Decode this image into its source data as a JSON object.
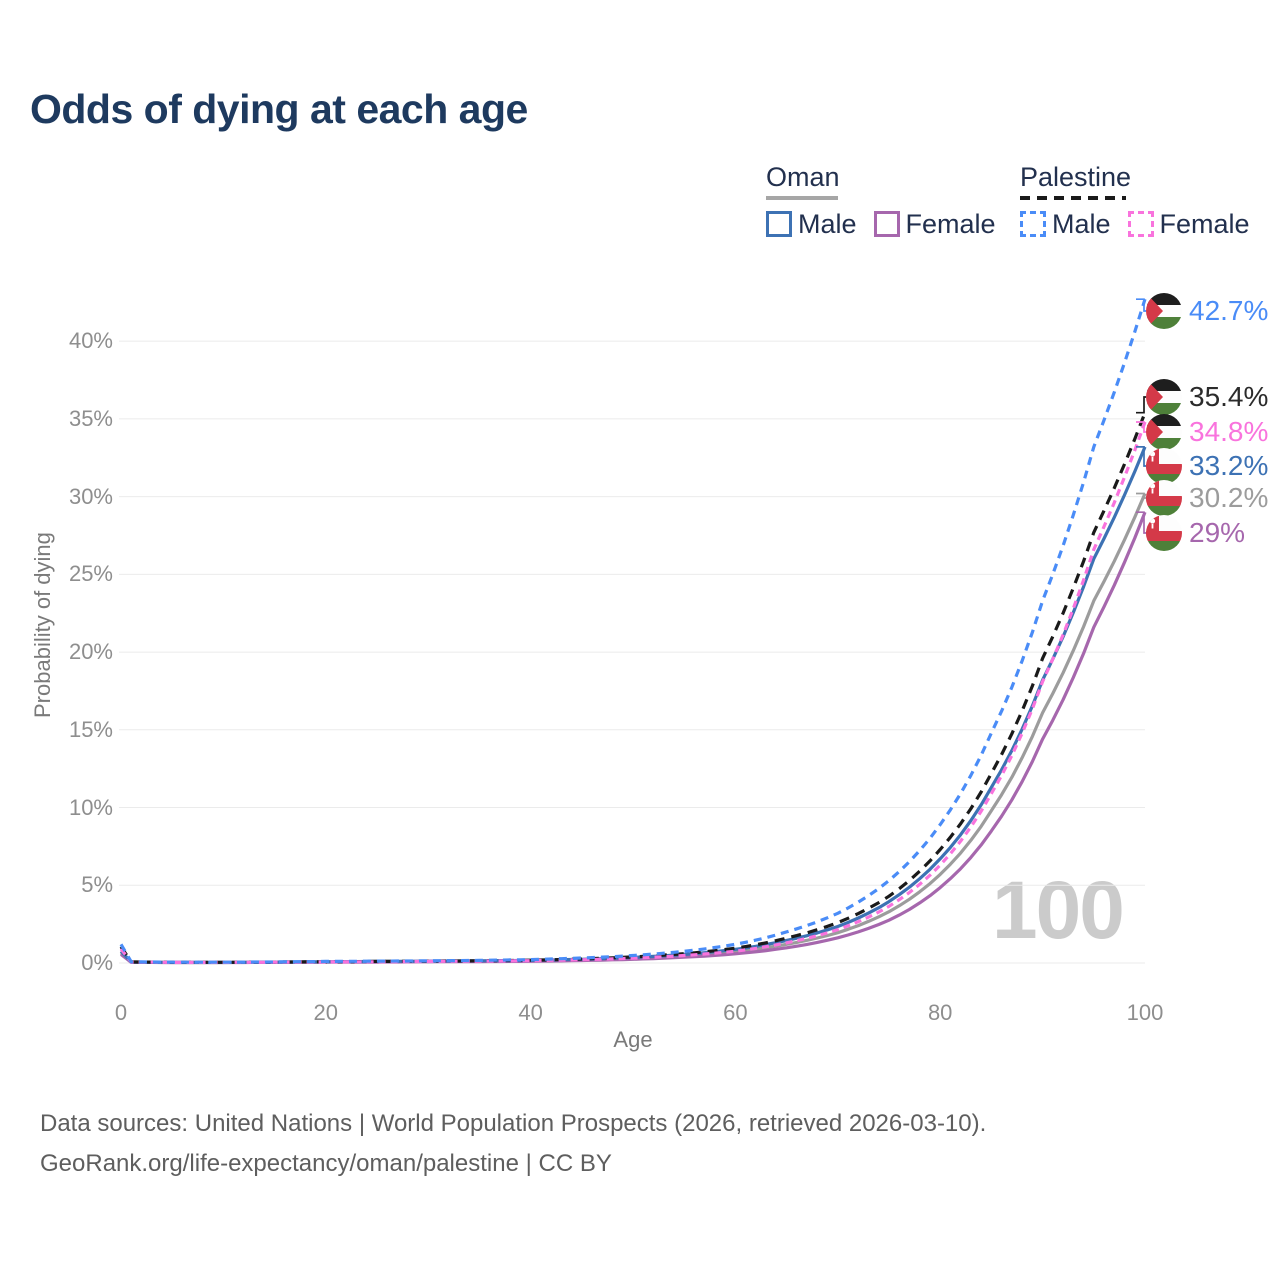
{
  "title": "Odds of dying at each age",
  "legend": {
    "groups": [
      {
        "name": "Oman",
        "line_style": "solid",
        "underline_color": "#a6a6a6",
        "items": [
          {
            "label": "Male",
            "color": "#3d72b4",
            "dashed": false
          },
          {
            "label": "Female",
            "color": "#a667ad",
            "dashed": false
          }
        ]
      },
      {
        "name": "Palestine",
        "line_style": "dashed",
        "underline_color": "#1a1a1a",
        "items": [
          {
            "label": "Male",
            "color": "#4a8cf7",
            "dashed": true
          },
          {
            "label": "Female",
            "color": "#f973dd",
            "dashed": true
          }
        ]
      }
    ]
  },
  "chart_data": {
    "type": "line",
    "title": "Odds of dying at each age",
    "xlabel": "Age",
    "ylabel": "Probability of dying",
    "xlim": [
      0,
      100
    ],
    "ylim": [
      0,
      44
    ],
    "x_ticks": [
      0,
      20,
      40,
      60,
      80,
      100
    ],
    "x_tick_labels": [
      "0",
      "20",
      "40",
      "60",
      "80",
      "100"
    ],
    "y_ticks": [
      0,
      5,
      10,
      15,
      20,
      25,
      30,
      35,
      40
    ],
    "y_tick_labels": [
      "0%",
      "5%",
      "10%",
      "15%",
      "20%",
      "25%",
      "30%",
      "35%",
      "40%"
    ],
    "grid": "horizontal-only",
    "legend_position": "top-right",
    "age_counter": "100",
    "ages": [
      0,
      1,
      5,
      10,
      15,
      20,
      25,
      30,
      35,
      40,
      45,
      50,
      55,
      60,
      65,
      70,
      75,
      80,
      85,
      90,
      95,
      100
    ],
    "series": [
      {
        "id": "palestine-male",
        "name": "Palestine Male",
        "country": "Palestine",
        "sex": "Male",
        "flag": "palestine",
        "color": "#4a8cf7",
        "dashed": true,
        "end_label": "42.7%",
        "end_value": 42.7,
        "values": [
          1.2,
          0.08,
          0.05,
          0.05,
          0.07,
          0.1,
          0.12,
          0.14,
          0.17,
          0.22,
          0.32,
          0.48,
          0.75,
          1.2,
          2.0,
          3.2,
          5.3,
          8.9,
          14.8,
          23.3,
          33.2,
          42.7
        ]
      },
      {
        "id": "palestine-both",
        "name": "Palestine Both sexes",
        "country": "Palestine",
        "sex": "Both",
        "flag": "palestine",
        "color": "#1a1a1a",
        "dashed": true,
        "end_label": "35.4%",
        "end_value": 35.4,
        "values": [
          1.05,
          0.07,
          0.045,
          0.045,
          0.06,
          0.08,
          0.1,
          0.12,
          0.14,
          0.18,
          0.26,
          0.39,
          0.6,
          0.95,
          1.6,
          2.6,
          4.3,
          7.3,
          12.2,
          19.6,
          27.7,
          35.4
        ]
      },
      {
        "id": "palestine-female",
        "name": "Palestine Female",
        "country": "Palestine",
        "sex": "Female",
        "flag": "palestine",
        "color": "#f973dd",
        "dashed": true,
        "end_label": "34.8%",
        "end_value": 34.8,
        "values": [
          0.9,
          0.06,
          0.04,
          0.04,
          0.05,
          0.07,
          0.08,
          0.1,
          0.12,
          0.15,
          0.21,
          0.31,
          0.48,
          0.76,
          1.3,
          2.15,
          3.65,
          6.3,
          10.9,
          18.1,
          26.6,
          34.8
        ]
      },
      {
        "id": "oman-male",
        "name": "Oman Male",
        "country": "Oman",
        "sex": "Male",
        "flag": "oman",
        "color": "#3d72b4",
        "dashed": false,
        "end_label": "33.2%",
        "end_value": 33.2,
        "values": [
          0.75,
          0.055,
          0.04,
          0.04,
          0.06,
          0.08,
          0.1,
          0.12,
          0.14,
          0.17,
          0.24,
          0.36,
          0.55,
          0.88,
          1.45,
          2.35,
          3.95,
          6.7,
          11.3,
          18.2,
          26.0,
          33.2
        ]
      },
      {
        "id": "oman-both",
        "name": "Oman Both sexes",
        "country": "Oman",
        "sex": "Both",
        "flag": "oman",
        "color": "#9c9c9c",
        "dashed": false,
        "end_label": "30.2%",
        "end_value": 30.2,
        "values": [
          0.65,
          0.05,
          0.035,
          0.035,
          0.05,
          0.07,
          0.08,
          0.1,
          0.12,
          0.14,
          0.2,
          0.3,
          0.46,
          0.73,
          1.2,
          1.95,
          3.3,
          5.7,
          9.8,
          16.1,
          23.3,
          30.2
        ]
      },
      {
        "id": "oman-female",
        "name": "Oman Female",
        "country": "Oman",
        "sex": "Female",
        "flag": "oman",
        "color": "#a667ad",
        "dashed": false,
        "end_label": "29%",
        "end_value": 29.0,
        "values": [
          0.55,
          0.045,
          0.03,
          0.03,
          0.04,
          0.05,
          0.06,
          0.08,
          0.09,
          0.11,
          0.16,
          0.24,
          0.37,
          0.59,
          0.98,
          1.62,
          2.75,
          4.85,
          8.5,
          14.4,
          21.6,
          29.0
        ]
      }
    ]
  },
  "footer": {
    "line1": "Data sources: United Nations | World Population Prospects (2026, retrieved 2026-03-10).",
    "line2": "GeoRank.org/life-expectancy/oman/palestine | CC BY"
  }
}
